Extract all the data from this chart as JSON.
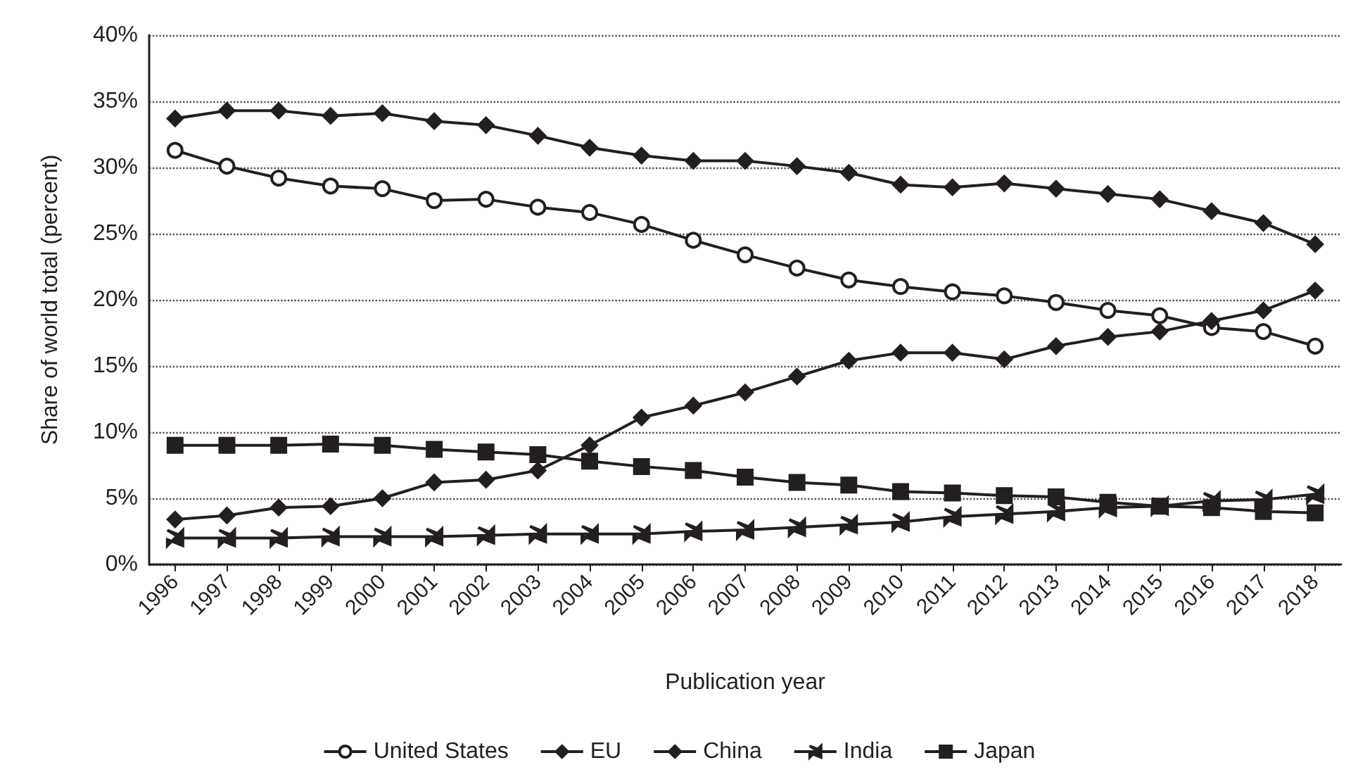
{
  "chart_data": {
    "type": "line",
    "xlabel": "Publication year",
    "ylabel": "Share of world total (percent)",
    "categories": [
      "1996",
      "1997",
      "1998",
      "1999",
      "2000",
      "2001",
      "2002",
      "2003",
      "2004",
      "2005",
      "2006",
      "2007",
      "2008",
      "2009",
      "2010",
      "2011",
      "2012",
      "2013",
      "2014",
      "2015",
      "2016",
      "2017",
      "2018"
    ],
    "ylim": [
      0,
      40
    ],
    "yticks": [
      {
        "value": 0,
        "label": "0%"
      },
      {
        "value": 5,
        "label": "5%"
      },
      {
        "value": 10,
        "label": "10%"
      },
      {
        "value": 15,
        "label": "15%"
      },
      {
        "value": 20,
        "label": "20%"
      },
      {
        "value": 25,
        "label": "25%"
      },
      {
        "value": 30,
        "label": "30%"
      },
      {
        "value": 35,
        "label": "35%"
      },
      {
        "value": 40,
        "label": "40%"
      }
    ],
    "grid": "y",
    "legend": "bottom",
    "line_style": "solid",
    "series": [
      {
        "name": "United States",
        "color": "#231f20",
        "marker": "circle",
        "values": [
          31.3,
          30.1,
          29.2,
          28.6,
          28.4,
          27.5,
          27.6,
          27.0,
          26.6,
          25.7,
          24.5,
          23.4,
          22.4,
          21.5,
          21.0,
          20.6,
          20.3,
          19.8,
          19.2,
          18.8,
          17.9,
          17.6,
          16.5
        ]
      },
      {
        "name": "EU",
        "color": "#231f20",
        "marker": "diamond",
        "values": [
          33.7,
          34.3,
          34.3,
          33.9,
          34.1,
          33.5,
          33.2,
          32.4,
          31.5,
          30.9,
          30.5,
          30.5,
          30.1,
          29.6,
          28.7,
          28.5,
          28.8,
          28.4,
          28.0,
          27.6,
          26.7,
          25.8,
          24.2
        ]
      },
      {
        "name": "China",
        "color": "#231f20",
        "marker": "diamond",
        "values": [
          3.4,
          3.7,
          4.3,
          4.4,
          5.0,
          6.2,
          6.4,
          7.1,
          9.0,
          11.1,
          12.0,
          13.0,
          14.2,
          15.4,
          16.0,
          16.0,
          15.5,
          16.5,
          17.2,
          17.6,
          18.4,
          19.2,
          20.7
        ]
      },
      {
        "name": "India",
        "color": "#231f20",
        "marker": "cross",
        "values": [
          2.0,
          2.0,
          2.0,
          2.1,
          2.1,
          2.1,
          2.2,
          2.3,
          2.3,
          2.3,
          2.5,
          2.6,
          2.8,
          3.0,
          3.2,
          3.6,
          3.8,
          4.0,
          4.3,
          4.4,
          4.8,
          4.9,
          5.3
        ]
      },
      {
        "name": "Japan",
        "color": "#231f20",
        "marker": "square",
        "values": [
          9.0,
          9.0,
          9.0,
          9.1,
          9.0,
          8.7,
          8.5,
          8.3,
          7.8,
          7.4,
          7.1,
          6.6,
          6.2,
          6.0,
          5.5,
          5.4,
          5.2,
          5.1,
          4.7,
          4.4,
          4.3,
          4.0,
          3.9
        ]
      }
    ]
  }
}
